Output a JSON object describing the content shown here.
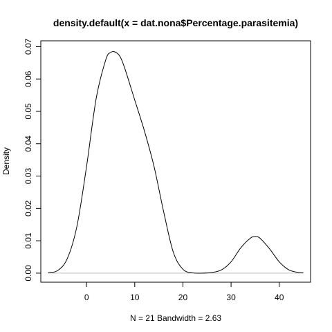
{
  "chart_data": {
    "type": "line",
    "title": "density.default(x = dat.nona$Percentage.parasitemia)",
    "xlabel": "N = 21   Bandwidth = 2.63",
    "ylabel": "Density",
    "xlim": [
      -9.5,
      46.5
    ],
    "ylim": [
      -0.0028,
      0.0718
    ],
    "x_ticks": [
      {
        "value": 0,
        "label": "0"
      },
      {
        "value": 10,
        "label": "10"
      },
      {
        "value": 20,
        "label": "20"
      },
      {
        "value": 30,
        "label": "30"
      },
      {
        "value": 40,
        "label": "40"
      }
    ],
    "y_ticks": [
      {
        "value": 0.0,
        "label": "0.00"
      },
      {
        "value": 0.01,
        "label": "0.01"
      },
      {
        "value": 0.02,
        "label": "0.02"
      },
      {
        "value": 0.03,
        "label": "0.03"
      },
      {
        "value": 0.04,
        "label": "0.04"
      },
      {
        "value": 0.05,
        "label": "0.05"
      },
      {
        "value": 0.06,
        "label": "0.06"
      },
      {
        "value": 0.07,
        "label": "0.07"
      }
    ],
    "baseline": 0,
    "series": [
      {
        "color": "#000000",
        "x": [
          -8,
          -6,
          -4,
          -2,
          0,
          2,
          4,
          5,
          6,
          7,
          8,
          10,
          12,
          14,
          16,
          18,
          20,
          22,
          24,
          26,
          28,
          30,
          32,
          34,
          35,
          36,
          38,
          40,
          42,
          44,
          45
        ],
        "y": [
          0.0001,
          0.0008,
          0.0045,
          0.0145,
          0.033,
          0.054,
          0.066,
          0.0682,
          0.0683,
          0.0668,
          0.063,
          0.0535,
          0.044,
          0.033,
          0.019,
          0.0065,
          0.0012,
          0.0001,
          0.0,
          0.0002,
          0.001,
          0.0035,
          0.0078,
          0.0108,
          0.0113,
          0.0108,
          0.0075,
          0.0035,
          0.001,
          0.0002,
          0.0001
        ]
      }
    ]
  }
}
